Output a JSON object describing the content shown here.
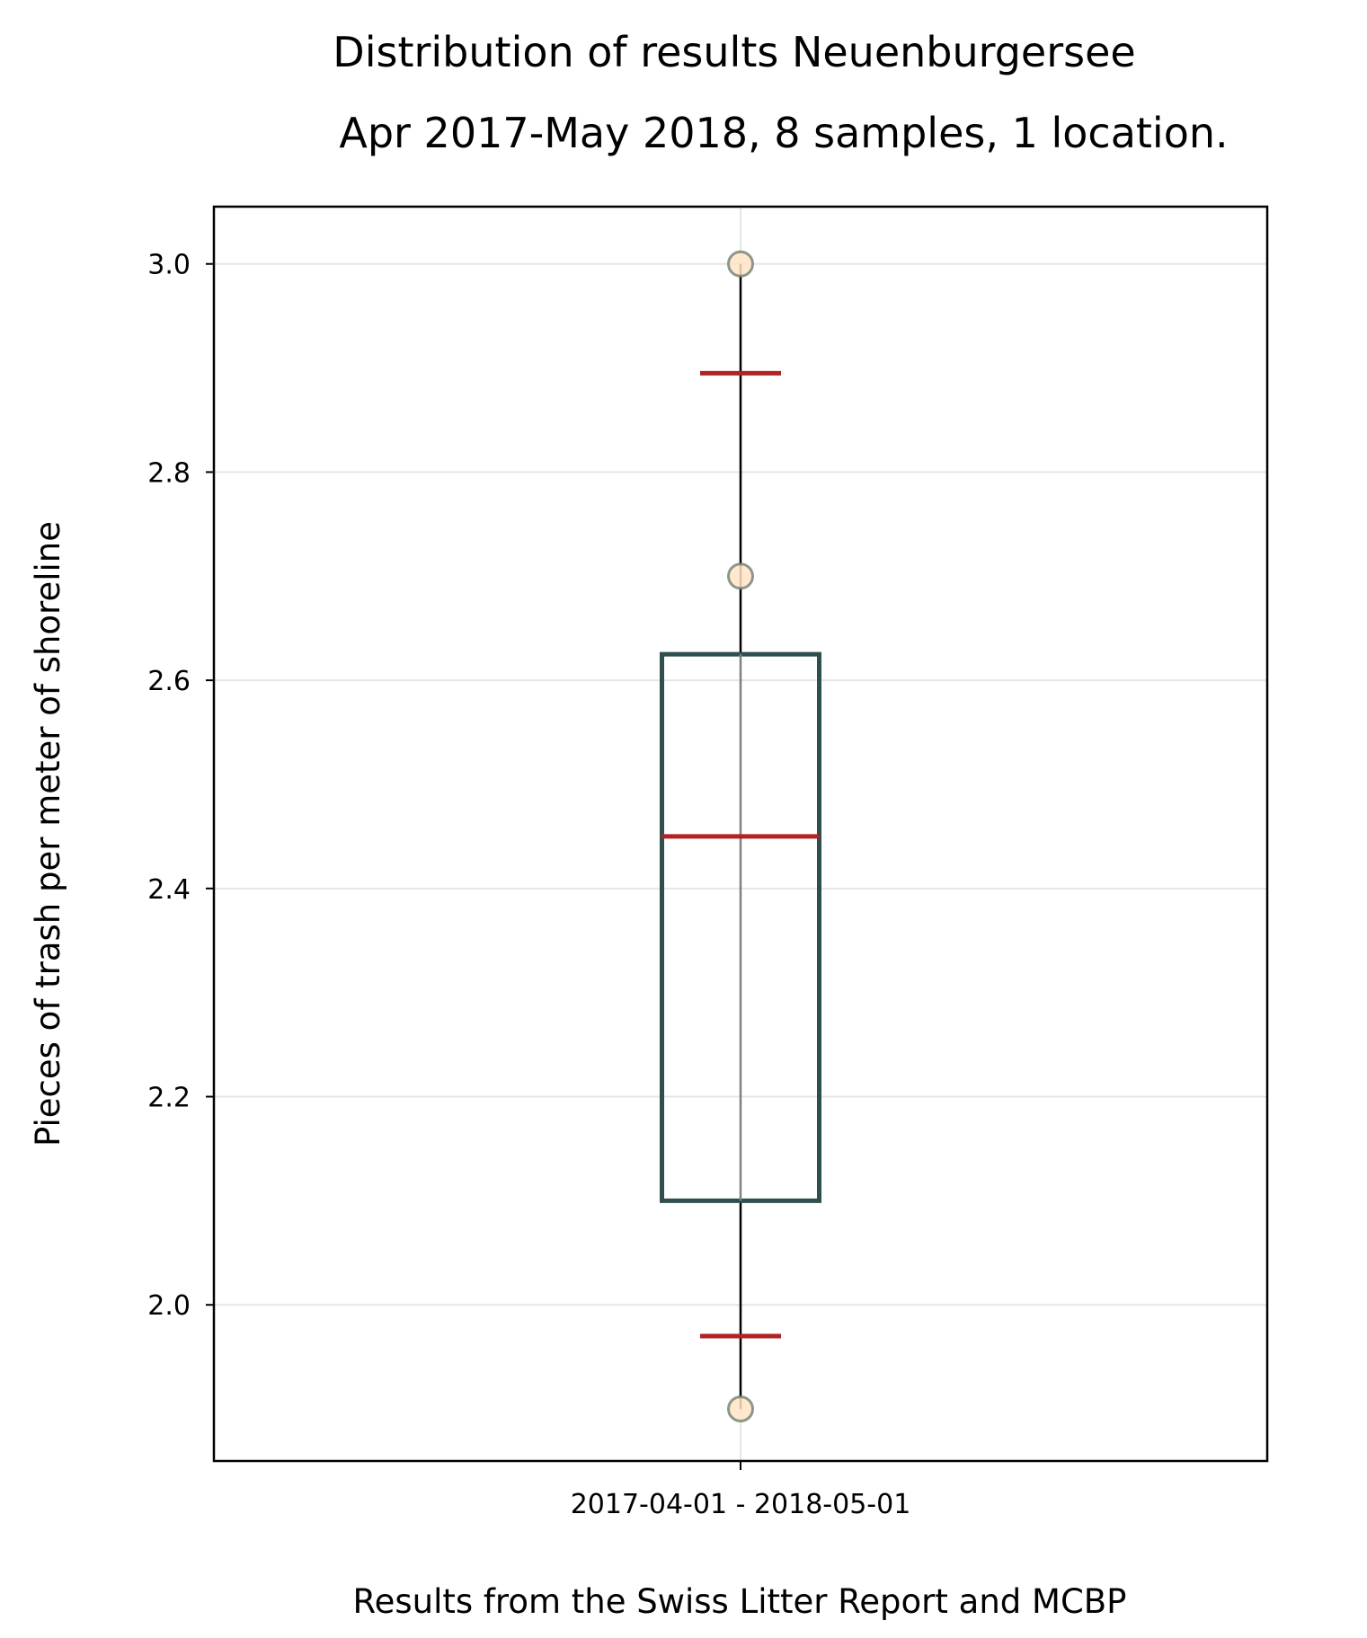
{
  "chart_data": {
    "type": "box",
    "title": "Distribution of results Neuenburgersee",
    "subtitle": "Apr 2017-May 2018, 8 samples, 1 location.",
    "xlabel": "Results from the Swiss Litter Report and MCBP",
    "ylabel": "Pieces of trash per meter of shoreline",
    "categories": [
      "2017-04-01 - 2018-05-01"
    ],
    "ylim": [
      1.85,
      3.055
    ],
    "yticks": [
      2.0,
      2.2,
      2.4,
      2.6,
      2.8,
      3.0
    ],
    "grid": true,
    "box": {
      "q1": 2.1,
      "median": 2.45,
      "q3": 2.625,
      "whisker_low": 1.9,
      "whisker_high": 3.0
    },
    "reference_markers": [
      2.895,
      1.97
    ],
    "points": [
      3.0,
      2.7,
      1.9
    ],
    "colors": {
      "box": "#2f4f4f",
      "median": "#b22222",
      "markers": "#b22222",
      "points_fill": "#ffe4c4",
      "points_edge": "#708070",
      "grid": "#e6e6e6"
    }
  }
}
